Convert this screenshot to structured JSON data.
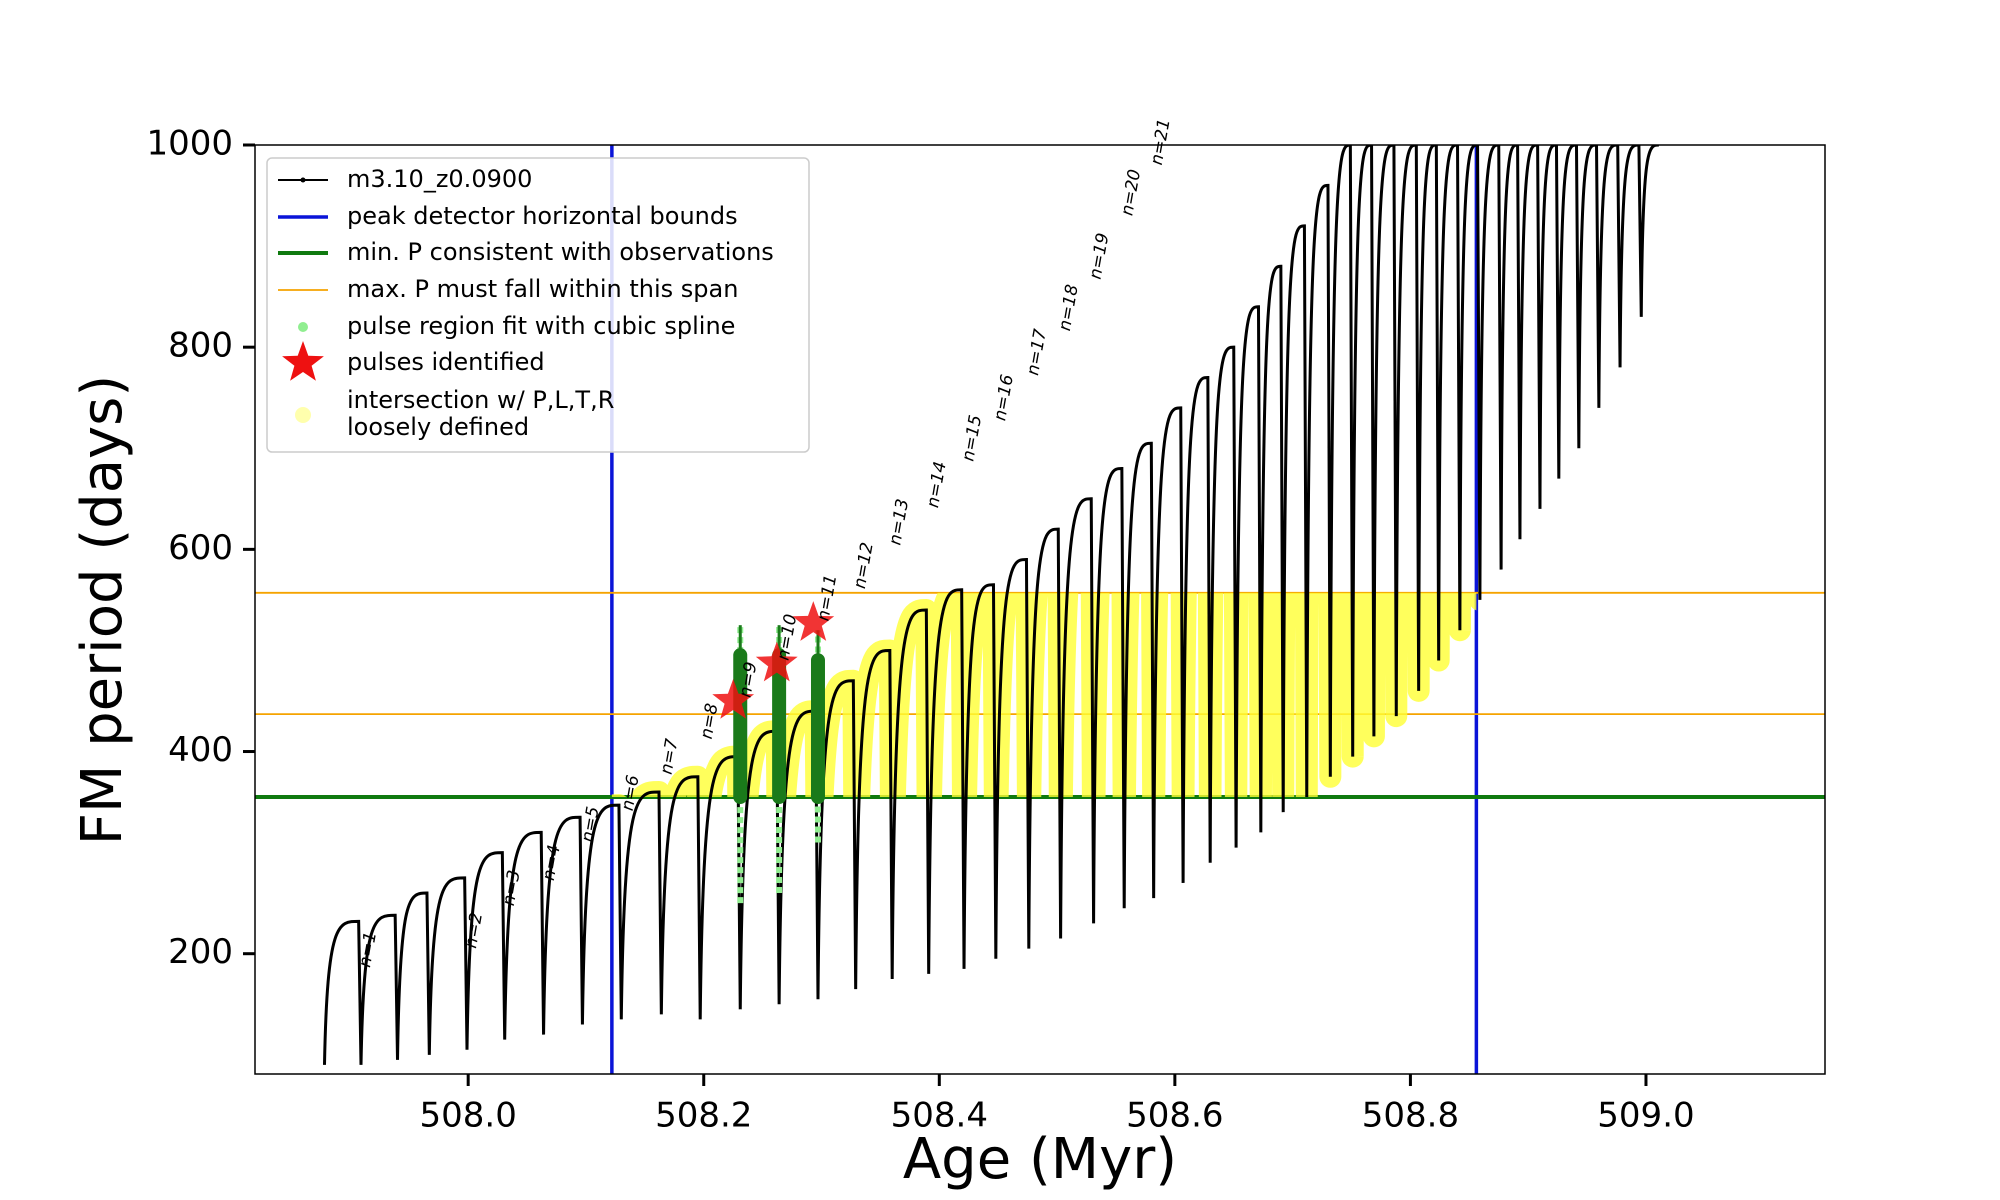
{
  "chart_data": {
    "type": "line",
    "xlabel": "Age (Myr)",
    "ylabel": "FM period (days)",
    "xlim": [
      507.819,
      509.152
    ],
    "ylim": [
      81,
      1000
    ],
    "xticks": [
      {
        "value": 508,
        "label": "508.0"
      },
      {
        "value": 508.2,
        "label": "508.2"
      },
      {
        "value": 508.4,
        "label": "508.4"
      },
      {
        "value": 508.6,
        "label": "508.6"
      },
      {
        "value": 508.8,
        "label": "508.8"
      },
      {
        "value": 509,
        "label": "509.0"
      }
    ],
    "yticks": [
      200,
      400,
      600,
      800,
      1000
    ],
    "series": [
      {
        "name": "m3.10_z0.0900",
        "color": "#000000",
        "x": [
          507.878,
          507.907,
          507.909,
          507.938,
          507.94,
          507.965,
          507.967,
          507.997,
          507.999,
          508.029,
          508.031,
          508.062,
          508.064,
          508.095,
          508.097,
          508.128,
          508.13,
          508.162,
          508.164,
          508.195,
          508.197,
          508.229,
          508.231,
          508.262,
          508.264,
          508.295,
          508.297,
          508.327,
          508.329,
          508.358,
          508.36,
          508.389,
          508.391,
          508.419,
          508.421,
          508.446,
          508.448,
          508.474,
          508.476,
          508.501,
          508.503,
          508.529,
          508.531,
          508.555,
          508.557,
          508.58,
          508.582,
          508.605,
          508.607,
          508.628,
          508.63,
          508.65,
          508.652,
          508.671,
          508.673,
          508.69,
          508.692,
          508.71,
          508.712,
          508.73,
          508.732,
          508.749,
          508.751,
          508.767,
          508.769,
          508.786,
          508.788,
          508.805,
          508.807,
          508.822,
          508.824,
          508.84,
          508.842,
          508.857,
          508.859,
          508.875,
          508.877,
          508.891,
          508.893,
          508.908,
          508.91,
          508.924,
          508.926,
          508.941,
          508.943,
          508.958,
          508.96,
          508.976,
          508.978,
          508.994,
          508.996,
          509.011
        ],
        "values": [
          90,
          232,
          90,
          238,
          95,
          260,
          100,
          275,
          105,
          300,
          115,
          320,
          120,
          335,
          130,
          347,
          135,
          360,
          140,
          375,
          135,
          395,
          145,
          420,
          150,
          440,
          155,
          470,
          165,
          500,
          175,
          540,
          180,
          560,
          185,
          565,
          195,
          590,
          205,
          620,
          215,
          650,
          230,
          680,
          245,
          705,
          255,
          740,
          270,
          770,
          290,
          800,
          305,
          840,
          320,
          880,
          340,
          920,
          355,
          960,
          375,
          1000,
          395,
          1000,
          415,
          1000,
          435,
          1000,
          460,
          1000,
          490,
          1000,
          520,
          1000,
          550,
          1000,
          580,
          1000,
          610,
          1000,
          640,
          1000,
          670,
          1000,
          700,
          1000,
          740,
          1000,
          780,
          1000,
          830,
          1000
        ]
      }
    ],
    "reference_lines": [
      {
        "name": "peak detector horizontal bounds",
        "color": "#0a14d8",
        "axis": "x",
        "values": [
          508.122,
          508.856
        ]
      },
      {
        "name": "min. P consistent with observations",
        "color": "#0f7a0f",
        "axis": "y",
        "values": [
          355
        ]
      },
      {
        "name": "max. P must fall within this span",
        "color": "#f5a300",
        "axis": "y",
        "values": [
          437,
          557
        ]
      }
    ],
    "spline_regions": {
      "name": "pulse region fit with cubic spline",
      "color": "#90ee90",
      "fit_color": "#1a7a1a",
      "x": [
        508.231,
        508.264,
        508.297
      ],
      "low": [
        250,
        260,
        310
      ],
      "high": [
        525,
        525,
        520
      ]
    },
    "pulses": {
      "name": "pulses identified",
      "color": "#ee1111",
      "x": [
        508.225,
        508.262,
        508.293
      ],
      "values": [
        450,
        487,
        527
      ]
    },
    "intersection": {
      "name": [
        "intersection w/ P,L,T,R",
        "loosely defined"
      ],
      "color": "#ffff33"
    },
    "annotations": [
      {
        "text": "n=1",
        "x": 507.915,
        "y": 204
      },
      {
        "text": "n=2",
        "x": 508.005,
        "y": 223
      },
      {
        "text": "n=3",
        "x": 508.037,
        "y": 265
      },
      {
        "text": "n=4",
        "x": 508.071,
        "y": 290
      },
      {
        "text": "n=5",
        "x": 508.104,
        "y": 328
      },
      {
        "text": "n=6",
        "x": 508.138,
        "y": 359
      },
      {
        "text": "n=7",
        "x": 508.171,
        "y": 395
      },
      {
        "text": "n=8",
        "x": 508.205,
        "y": 430
      },
      {
        "text": "n=9",
        "x": 508.238,
        "y": 471
      },
      {
        "text": "n=10",
        "x": 508.271,
        "y": 513
      },
      {
        "text": "n=11",
        "x": 508.305,
        "y": 552
      },
      {
        "text": "n=12",
        "x": 508.336,
        "y": 584
      },
      {
        "text": "n=13",
        "x": 508.366,
        "y": 627
      },
      {
        "text": "n=14",
        "x": 508.398,
        "y": 664
      },
      {
        "text": "n=15",
        "x": 508.428,
        "y": 710
      },
      {
        "text": "n=16",
        "x": 508.455,
        "y": 750
      },
      {
        "text": "n=17",
        "x": 508.483,
        "y": 795
      },
      {
        "text": "n=18",
        "x": 508.51,
        "y": 839
      },
      {
        "text": "n=19",
        "x": 508.536,
        "y": 890
      },
      {
        "text": "n=20",
        "x": 508.563,
        "y": 953
      },
      {
        "text": "n=21",
        "x": 508.588,
        "y": 1003
      }
    ]
  }
}
